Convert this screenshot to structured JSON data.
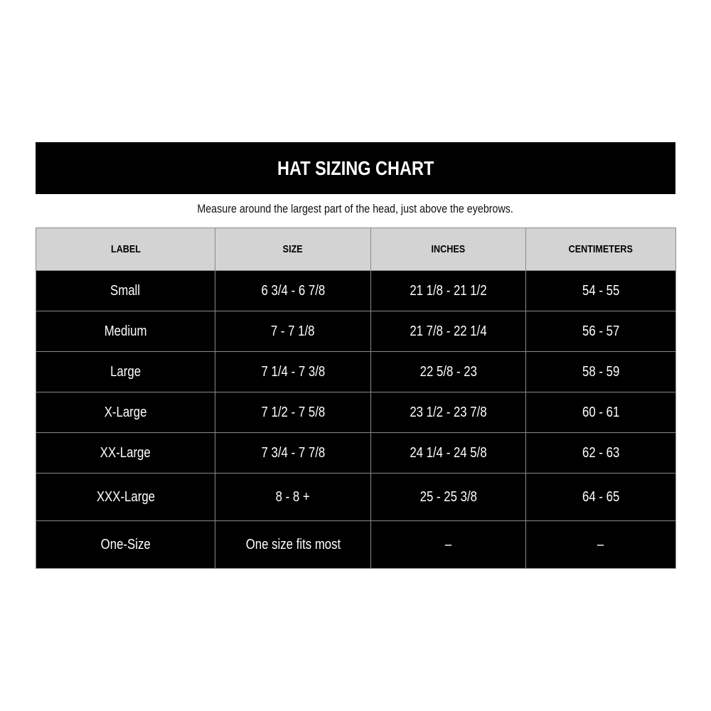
{
  "title": "HAT SIZING CHART",
  "subtitle": "Measure around the largest part of the head, just above the eyebrows.",
  "table": {
    "headers": [
      "LABEL",
      "SIZE",
      "INCHES",
      "CENTIMETERS"
    ],
    "rows": [
      [
        "Small",
        "6 3/4 - 6 7/8",
        "21 1/8 - 21 1/2",
        "54 - 55"
      ],
      [
        "Medium",
        "7 - 7 1/8",
        "21 7/8 - 22 1/4",
        "56 - 57"
      ],
      [
        "Large",
        "7 1/4 - 7 3/8",
        "22 5/8 - 23",
        "58 - 59"
      ],
      [
        "X-Large",
        "7 1/2 - 7 5/8",
        "23 1/2 - 23 7/8",
        "60 - 61"
      ],
      [
        "XX-Large",
        "7 3/4 - 7 7/8",
        "24 1/4 - 24 5/8",
        "62 - 63"
      ],
      [
        "XXX-Large",
        "8 - 8 +",
        "25 - 25 3/8",
        "64 - 65"
      ],
      [
        "One-Size",
        "One size fits most",
        "–",
        "–"
      ]
    ]
  },
  "colors": {
    "header_bg": "#000000",
    "column_header_bg": "#d3d3d3",
    "row_bg": "#000000",
    "grid": "#8a8a8a"
  }
}
